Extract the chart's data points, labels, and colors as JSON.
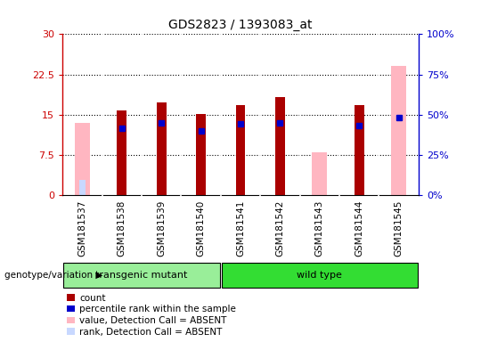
{
  "title": "GDS2823 / 1393083_at",
  "samples": [
    "GSM181537",
    "GSM181538",
    "GSM181539",
    "GSM181540",
    "GSM181541",
    "GSM181542",
    "GSM181543",
    "GSM181544",
    "GSM181545"
  ],
  "count_values": [
    null,
    15.8,
    17.2,
    15.1,
    16.8,
    18.2,
    null,
    16.7,
    null
  ],
  "absent_value": [
    13.5,
    null,
    null,
    null,
    null,
    null,
    8.0,
    null,
    24.0
  ],
  "absent_rank_scaled": [
    9.5,
    null,
    null,
    null,
    null,
    null,
    null,
    null,
    null
  ],
  "percentile_rank": [
    null,
    12.5,
    13.5,
    12.0,
    13.2,
    13.5,
    null,
    13.0,
    14.5
  ],
  "absent_rank_right_vals": [
    null,
    null,
    null,
    null,
    null,
    null,
    null,
    null,
    44.0
  ],
  "ylim_left": [
    0,
    30
  ],
  "yticks_left": [
    0,
    7.5,
    15,
    22.5,
    30
  ],
  "ytick_labels_left": [
    "0",
    "7.5",
    "15",
    "22.5",
    "30"
  ],
  "yticks_right": [
    0,
    25,
    50,
    75,
    100
  ],
  "ytick_labels_right": [
    "0%",
    "25%",
    "50%",
    "75%",
    "100%"
  ],
  "group1_label": "transgenic mutant",
  "group2_label": "wild type",
  "group1_indices": [
    0,
    1,
    2,
    3
  ],
  "group2_indices": [
    4,
    5,
    6,
    7,
    8
  ],
  "group1_color": "#99EE99",
  "group2_color": "#33DD33",
  "bar_width": 0.35,
  "color_count": "#AA0000",
  "color_absent_value": "#FFB6C1",
  "color_absent_rank": "#C8D8FF",
  "color_percentile": "#0000CC",
  "left_axis_color": "#CC0000",
  "right_axis_color": "#0000CC",
  "legend_items": [
    "count",
    "percentile rank within the sample",
    "value, Detection Call = ABSENT",
    "rank, Detection Call = ABSENT"
  ],
  "legend_colors": [
    "#AA0000",
    "#0000CC",
    "#FFB6C1",
    "#C8D8FF"
  ],
  "background_plot": "#FFFFFF",
  "genotype_label": "genotype/variation"
}
